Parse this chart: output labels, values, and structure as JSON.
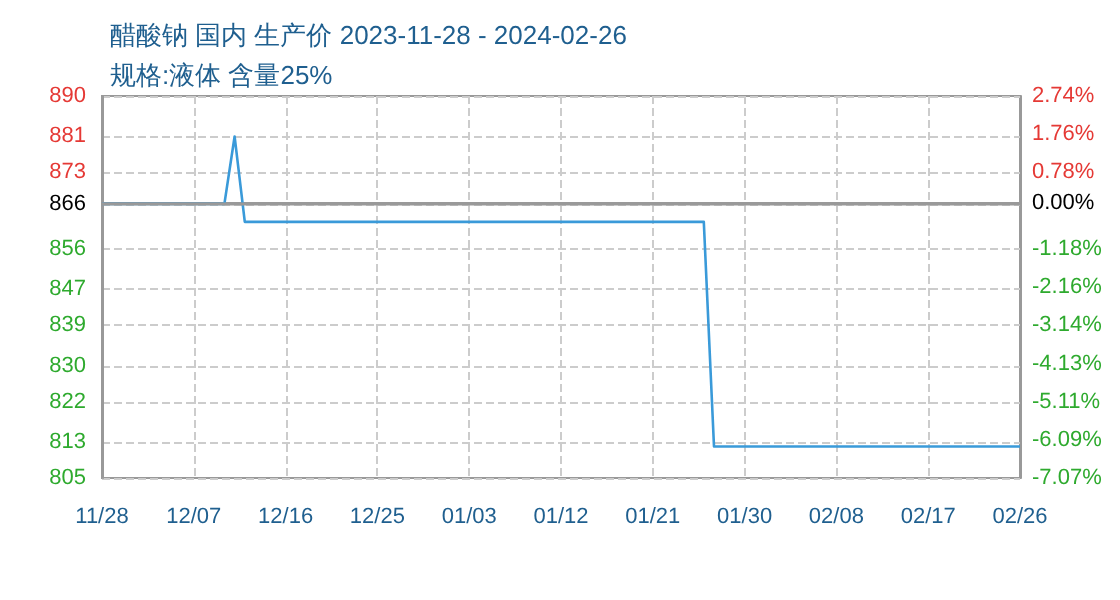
{
  "chart_data": {
    "type": "line",
    "title": "醋酸钠 国内 生产价 2023-11-28 - 2024-02-26",
    "subtitle": "规格:液体 含量25%",
    "x": [
      "2023-11-28",
      "2023-12-10",
      "2023-12-11",
      "2023-12-12",
      "2024-01-26",
      "2024-01-27",
      "2024-02-26"
    ],
    "series": [
      {
        "color": "#3a9ad9",
        "values": [
          866,
          866,
          881,
          862,
          862,
          812,
          812
        ]
      }
    ],
    "xlim": [
      "2023-11-28",
      "2024-02-26"
    ],
    "xticks": [
      {
        "value": "2023-11-28",
        "label": "11/28"
      },
      {
        "value": "2023-12-07",
        "label": "12/07"
      },
      {
        "value": "2023-12-16",
        "label": "12/16"
      },
      {
        "value": "2023-12-25",
        "label": "12/25"
      },
      {
        "value": "2024-01-03",
        "label": "01/03"
      },
      {
        "value": "2024-01-12",
        "label": "01/12"
      },
      {
        "value": "2024-01-21",
        "label": "01/21"
      },
      {
        "value": "2024-01-30",
        "label": "01/30"
      },
      {
        "value": "2024-02-08",
        "label": "02/08"
      },
      {
        "value": "2024-02-17",
        "label": "02/17"
      },
      {
        "value": "2024-02-26",
        "label": "02/26"
      }
    ],
    "ylim": [
      805,
      890
    ],
    "yticks": [
      890,
      881,
      873,
      866,
      856,
      847,
      839,
      830,
      822,
      813,
      805
    ],
    "y2lim": [
      -7.07,
      2.74
    ],
    "y2ticks": [
      {
        "value": 2.74,
        "label": "2.74%"
      },
      {
        "value": 1.76,
        "label": "1.76%"
      },
      {
        "value": 0.78,
        "label": "0.78%"
      },
      {
        "value": 0,
        "label": "0.00%"
      },
      {
        "value": -1.18,
        "label": "-1.18%"
      },
      {
        "value": -2.16,
        "label": "-2.16%"
      },
      {
        "value": -3.14,
        "label": "-3.14%"
      },
      {
        "value": -4.13,
        "label": "-4.13%"
      },
      {
        "value": -5.11,
        "label": "-5.11%"
      },
      {
        "value": -6.09,
        "label": "-6.09%"
      },
      {
        "value": -7.07,
        "label": "-7.07%"
      }
    ],
    "ref_lines": [
      {
        "axis": "y",
        "value": 866,
        "color": "#999999"
      }
    ],
    "grid": true,
    "marker": "none",
    "line_style": "solid"
  }
}
